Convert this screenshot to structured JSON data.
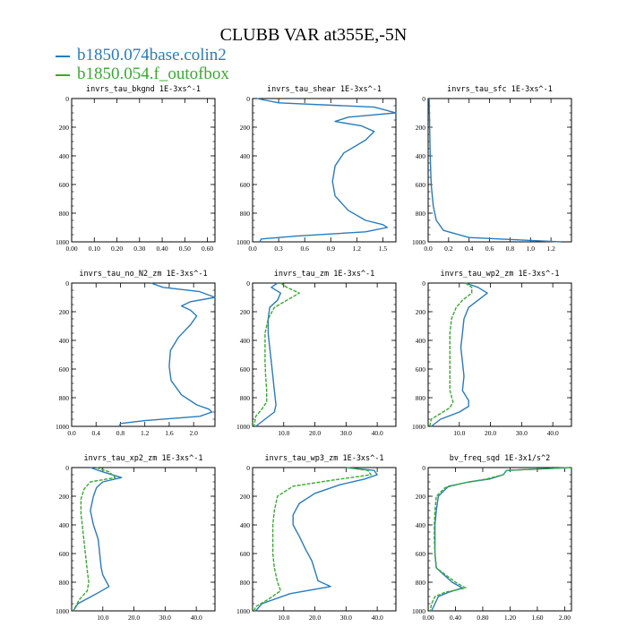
{
  "title": "CLUBB VAR at355E,-5N",
  "colors": {
    "series1": "#2b7bba",
    "series2": "#3aa832"
  },
  "chart_data": [
    {
      "type": "line",
      "title": "invrs_tau_bkgnd   1E-3xs^-1",
      "xlim": [
        0,
        0.6333
      ],
      "ylim": [
        1000,
        0
      ],
      "xticks": [
        "0.00",
        "0.10",
        "0.20",
        "0.30",
        "0.40",
        "0.50",
        "0.60"
      ],
      "xtick_values": [
        0,
        0.1,
        0.2,
        0.3,
        0.4,
        0.5,
        0.6
      ],
      "yticks": [
        "0",
        "200",
        "400",
        "600",
        "800",
        "1000"
      ],
      "series": []
    },
    {
      "type": "line",
      "title": "invrs_tau_shear   1E-3xs^-1",
      "xlim": [
        0,
        1.65
      ],
      "ylim": [
        1000,
        0
      ],
      "xticks": [
        "0.0",
        "0.3",
        "0.6",
        "0.9",
        "1.2",
        "1.5"
      ],
      "xtick_values": [
        0,
        0.3,
        0.6,
        0.9,
        1.2,
        1.5
      ],
      "yticks": [
        "0",
        "200",
        "400",
        "600",
        "800",
        "1000"
      ],
      "series": [
        {
          "name": "b1850.074base.colin2",
          "color": "#2b7bba",
          "x": [
            0.05,
            0.3,
            1.4,
            1.65,
            1.1,
            0.95,
            1.25,
            1.4,
            1.3,
            1.05,
            0.95,
            0.92,
            0.95,
            1.1,
            1.3,
            1.5,
            1.55,
            1.3,
            0.5,
            0.1,
            0.08
          ],
          "y": [
            0,
            30,
            60,
            100,
            130,
            160,
            190,
            230,
            290,
            380,
            470,
            580,
            680,
            780,
            850,
            880,
            900,
            930,
            960,
            980,
            1000
          ]
        }
      ]
    },
    {
      "type": "line",
      "title": "invrs_tau_sfc   1E-3xs^-1",
      "xlim": [
        0,
        1.4
      ],
      "ylim": [
        1000,
        0
      ],
      "xticks": [
        "0.0",
        "0.2",
        "0.4",
        "0.6",
        "0.8",
        "1.0",
        "1.2"
      ],
      "xtick_values": [
        0,
        0.2,
        0.4,
        0.6,
        0.8,
        1.0,
        1.2
      ],
      "yticks": [
        "0",
        "200",
        "400",
        "600",
        "800",
        "1000"
      ],
      "series": [
        {
          "name": "b1850.074base.colin2",
          "color": "#2b7bba",
          "x": [
            0.01,
            0.015,
            0.02,
            0.03,
            0.05,
            0.08,
            0.15,
            0.4,
            1.0,
            1.3
          ],
          "y": [
            0,
            200,
            400,
            600,
            750,
            850,
            920,
            970,
            990,
            1000
          ]
        }
      ]
    },
    {
      "type": "line",
      "title": "invrs_tau_no_N2_zm   1E-3xs^-1",
      "xlim": [
        0,
        2.35
      ],
      "ylim": [
        1000,
        0
      ],
      "xticks": [
        "0.0",
        "0.4",
        "0.8",
        "1.2",
        "1.6",
        "2.0"
      ],
      "xtick_values": [
        0,
        0.4,
        0.8,
        1.2,
        1.6,
        2.0
      ],
      "yticks": [
        "0",
        "200",
        "400",
        "600",
        "800",
        "1000"
      ],
      "series": [
        {
          "name": "b1850.074base.colin2",
          "color": "#2b7bba",
          "x": [
            1.3,
            1.5,
            2.1,
            2.35,
            1.95,
            1.8,
            1.95,
            2.05,
            1.95,
            1.75,
            1.62,
            1.6,
            1.63,
            1.8,
            2.05,
            2.25,
            2.3,
            2.1,
            1.2,
            0.8,
            0.78
          ],
          "y": [
            0,
            30,
            60,
            100,
            130,
            160,
            190,
            230,
            290,
            380,
            470,
            580,
            680,
            780,
            850,
            880,
            900,
            930,
            960,
            980,
            1000
          ]
        }
      ]
    },
    {
      "type": "line",
      "title": "invrs_tau_zm   1E-3xs^-1",
      "xlim": [
        0,
        46
      ],
      "ylim": [
        1000,
        0
      ],
      "xticks": [
        "10.0",
        "20.0",
        "30.0",
        "40.0"
      ],
      "xtick_values": [
        10,
        20,
        30,
        40
      ],
      "yticks": [
        "0",
        "200",
        "400",
        "600",
        "800",
        "1000"
      ],
      "series": [
        {
          "name": "b1850.074base.colin2",
          "color": "#2b7bba",
          "x": [
            8,
            6,
            9,
            8,
            5.5,
            5,
            5,
            5.5,
            6,
            6.5,
            7,
            7.5,
            7,
            4,
            1
          ],
          "y": [
            0,
            30,
            70,
            120,
            170,
            250,
            350,
            450,
            550,
            650,
            750,
            850,
            900,
            950,
            1000
          ]
        },
        {
          "name": "b1850.054.f_outofbox",
          "color": "#3aa832",
          "x": [
            9,
            11,
            15,
            11,
            7,
            5,
            4,
            4,
            4,
            4.2,
            4.5,
            4.5,
            3,
            1,
            0.5
          ],
          "y": [
            0,
            30,
            70,
            120,
            170,
            250,
            350,
            450,
            550,
            650,
            750,
            830,
            880,
            930,
            1000
          ]
        }
      ]
    },
    {
      "type": "line",
      "title": "invrs_tau_wp2_zm   1E-3xs^-1",
      "xlim": [
        0,
        46
      ],
      "ylim": [
        1000,
        0
      ],
      "xticks": [
        "10.0",
        "20.0",
        "30.0",
        "40.0"
      ],
      "xtick_values": [
        10,
        20,
        30,
        40
      ],
      "yticks": [
        "0",
        "200",
        "400",
        "600",
        "800",
        "1000"
      ],
      "series": [
        {
          "name": "b1850.074base.colin2",
          "color": "#2b7bba",
          "x": [
            12,
            16,
            19,
            16,
            13,
            11.5,
            11,
            10.5,
            11,
            11.5,
            11,
            13,
            13,
            10,
            4,
            1
          ],
          "y": [
            0,
            30,
            70,
            120,
            170,
            250,
            350,
            450,
            550,
            650,
            750,
            820,
            860,
            900,
            950,
            1000
          ]
        },
        {
          "name": "b1850.054.f_outofbox",
          "color": "#3aa832",
          "x": [
            12,
            14,
            14,
            11,
            9,
            7.5,
            7,
            7,
            7,
            7,
            7,
            8,
            7,
            4,
            1,
            0.5
          ],
          "y": [
            0,
            30,
            70,
            120,
            170,
            250,
            350,
            450,
            550,
            650,
            750,
            830,
            870,
            910,
            950,
            1000
          ]
        }
      ]
    },
    {
      "type": "line",
      "title": "invrs_tau_xp2_zm   1E-3xs^-1",
      "xlim": [
        0,
        46
      ],
      "ylim": [
        1000,
        0
      ],
      "xticks": [
        "10.0",
        "20.0",
        "30.0",
        "40.0"
      ],
      "xtick_values": [
        10,
        20,
        30,
        40
      ],
      "yticks": [
        "0",
        "200",
        "400",
        "600",
        "800",
        "1000"
      ],
      "series": [
        {
          "name": "b1850.074base.colin2",
          "color": "#2b7bba",
          "x": [
            6,
            10,
            16,
            10,
            8,
            7,
            6,
            7,
            8.5,
            9,
            9.5,
            10,
            12,
            8,
            2,
            0.5
          ],
          "y": [
            0,
            30,
            70,
            100,
            140,
            200,
            300,
            400,
            500,
            600,
            700,
            750,
            830,
            880,
            950,
            1000
          ]
        },
        {
          "name": "b1850.054.f_outofbox",
          "color": "#3aa832",
          "x": [
            8,
            12,
            14,
            6,
            4,
            3,
            3,
            3.5,
            4,
            4.5,
            5,
            5.5,
            5,
            2.5,
            0.5
          ],
          "y": [
            0,
            30,
            70,
            100,
            150,
            220,
            320,
            420,
            520,
            620,
            720,
            800,
            860,
            920,
            1000
          ]
        }
      ]
    },
    {
      "type": "line",
      "title": "invrs_tau_wp3_zm   1E-3xs^-1",
      "xlim": [
        0,
        46
      ],
      "ylim": [
        1000,
        0
      ],
      "xticks": [
        "10.0",
        "20.0",
        "30.0",
        "40.0"
      ],
      "xtick_values": [
        10,
        20,
        30,
        40
      ],
      "yticks": [
        "0",
        "200",
        "400",
        "600",
        "800",
        "1000"
      ],
      "series": [
        {
          "name": "b1850.074base.colin2",
          "color": "#2b7bba",
          "x": [
            30,
            39,
            40,
            36,
            28,
            20,
            15,
            13,
            13,
            15,
            17,
            19,
            20,
            21,
            25,
            12,
            3,
            1
          ],
          "y": [
            0,
            20,
            50,
            80,
            120,
            180,
            250,
            330,
            400,
            480,
            570,
            650,
            720,
            790,
            830,
            880,
            950,
            1000
          ]
        },
        {
          "name": "b1850.054.f_outofbox",
          "color": "#3aa832",
          "x": [
            30,
            37,
            38,
            25,
            13,
            8,
            7,
            6.5,
            6.5,
            6.5,
            7,
            8,
            9,
            5,
            1,
            0.5
          ],
          "y": [
            0,
            20,
            50,
            90,
            130,
            200,
            300,
            400,
            500,
            600,
            700,
            800,
            860,
            920,
            970,
            1000
          ]
        }
      ]
    },
    {
      "type": "line",
      "title": "bv_freq_sqd   1E-3x1/s^2",
      "xlim": [
        0,
        2.1
      ],
      "ylim": [
        1000,
        0
      ],
      "xticks": [
        "0.00",
        "0.40",
        "0.80",
        "1.20",
        "1.60",
        "2.00"
      ],
      "xtick_values": [
        0,
        0.4,
        0.8,
        1.2,
        1.6,
        2.0
      ],
      "yticks": [
        "0",
        "200",
        "400",
        "600",
        "800",
        "1000"
      ],
      "series": [
        {
          "name": "b1850.074base.colin2",
          "color": "#2b7bba",
          "x": [
            2.1,
            1.15,
            1.1,
            0.9,
            0.6,
            0.3,
            0.15,
            0.12,
            0.1,
            0.1,
            0.1,
            0.12,
            0.35,
            0.5,
            0.3,
            0.15,
            0.1,
            0.05
          ],
          "y": [
            0,
            20,
            50,
            80,
            100,
            130,
            200,
            300,
            400,
            500,
            600,
            700,
            800,
            840,
            870,
            900,
            950,
            1000
          ]
        },
        {
          "name": "b1850.054.f_outofbox",
          "color": "#3aa832",
          "x": [
            2.1,
            1.15,
            1.1,
            0.85,
            0.5,
            0.25,
            0.12,
            0.1,
            0.09,
            0.09,
            0.1,
            0.12,
            0.4,
            0.55,
            0.25,
            0.1,
            0.05,
            0.03
          ],
          "y": [
            0,
            20,
            50,
            80,
            110,
            140,
            200,
            300,
            400,
            500,
            600,
            700,
            800,
            840,
            870,
            900,
            950,
            1000
          ]
        }
      ]
    }
  ]
}
